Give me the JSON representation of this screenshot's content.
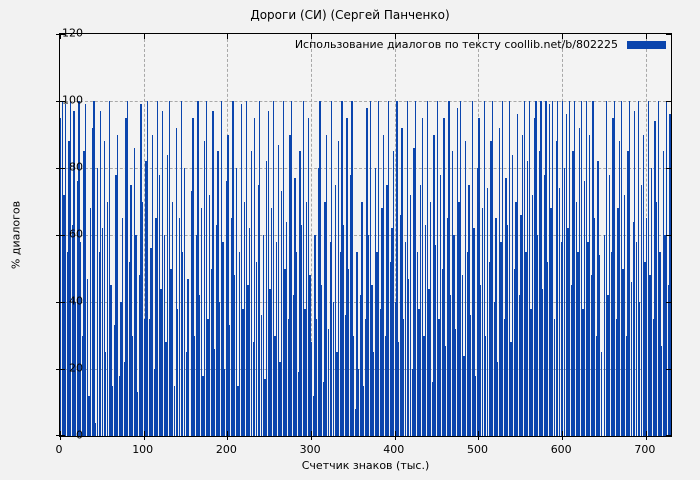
{
  "chart_data": {
    "type": "bar",
    "style": "impulses",
    "title": "Дороги (СИ) (Сергей Панченко)",
    "series_label": "Использование диалогов по тексту coollib.net/b/802225",
    "xlabel": "Счетчик знаков (тыс.)",
    "ylabel": "% диалогов",
    "xlim": [
      0,
      730
    ],
    "ylim": [
      0,
      120
    ],
    "xticks": [
      0,
      100,
      200,
      300,
      400,
      500,
      600,
      700
    ],
    "yticks": [
      0,
      20,
      40,
      60,
      80,
      100,
      120
    ],
    "grid": true,
    "legend_position": "top-right",
    "bar_color": "#0b45ad",
    "x_start": 0,
    "x_step": 2,
    "values": [
      95,
      100,
      72,
      99,
      55,
      88,
      100,
      63,
      97,
      40,
      76,
      100,
      58,
      30,
      85,
      99,
      47,
      12,
      68,
      92,
      100,
      4,
      80,
      55,
      97,
      62,
      88,
      25,
      70,
      100,
      45,
      15,
      33,
      78,
      90,
      18,
      40,
      65,
      22,
      95,
      100,
      52,
      75,
      30,
      86,
      60,
      13,
      48,
      99,
      70,
      35,
      82,
      100,
      35,
      56,
      90,
      20,
      65,
      100,
      78,
      44,
      97,
      60,
      28,
      84,
      100,
      50,
      70,
      15,
      92,
      38,
      65,
      100,
      55,
      80,
      25,
      47,
      0,
      73,
      95,
      30,
      60,
      100,
      42,
      68,
      18,
      88,
      100,
      35,
      72,
      50,
      97,
      26,
      63,
      85,
      40,
      100,
      58,
      20,
      76,
      90,
      33,
      65,
      100,
      48,
      80,
      15,
      55,
      99,
      38,
      70,
      100,
      45,
      62,
      85,
      28,
      95,
      52,
      75,
      100,
      36,
      60,
      17,
      82,
      97,
      44,
      68,
      100,
      30,
      58,
      87,
      22,
      73,
      100,
      50,
      64,
      35,
      90,
      100,
      42,
      77,
      55,
      19,
      85,
      63,
      100,
      38,
      70,
      95,
      48,
      28,
      12,
      60,
      35,
      80,
      100,
      45,
      16,
      70,
      90,
      32,
      58,
      100,
      40,
      75,
      25,
      88,
      55,
      100,
      63,
      36,
      95,
      50,
      78,
      100,
      30,
      8,
      55,
      20,
      42,
      70,
      15,
      35,
      98,
      60,
      100,
      45,
      25,
      80,
      55,
      100,
      38,
      68,
      90,
      30,
      75,
      100,
      52,
      62,
      85,
      40,
      100,
      28,
      66,
      92,
      35,
      58,
      100,
      47,
      72,
      20,
      86,
      100,
      55,
      38,
      75,
      95,
      30,
      63,
      100,
      44,
      70,
      16,
      90,
      57,
      100,
      35,
      78,
      50,
      95,
      27,
      65,
      100,
      42,
      85,
      60,
      32,
      98,
      70,
      100,
      48,
      24,
      88,
      55,
      75,
      36,
      100,
      62,
      18,
      80,
      95,
      45,
      68,
      100,
      30,
      74,
      52,
      88,
      100,
      40,
      65,
      22,
      92,
      58,
      100,
      35,
      77,
      63,
      100,
      28,
      84,
      50,
      70,
      96,
      42,
      66,
      90,
      100,
      55,
      82,
      100,
      38,
      72,
      95,
      100,
      60,
      85,
      100,
      44,
      78,
      100,
      52,
      99,
      68,
      100,
      35,
      88,
      100,
      74,
      58,
      100,
      80,
      96,
      62,
      100,
      45,
      85,
      100,
      70,
      55,
      92,
      100,
      38,
      76,
      100,
      58,
      90,
      48,
      100,
      65,
      30,
      82,
      54,
      25,
      0,
      60,
      100,
      42,
      78,
      55,
      95,
      100,
      35,
      68,
      88,
      100,
      50,
      72,
      30,
      85,
      100,
      46,
      64,
      97,
      58,
      100,
      40,
      75,
      90,
      52,
      65,
      100,
      48,
      80,
      35,
      94,
      70,
      100,
      55,
      27,
      85,
      60,
      100,
      45,
      96
    ]
  }
}
